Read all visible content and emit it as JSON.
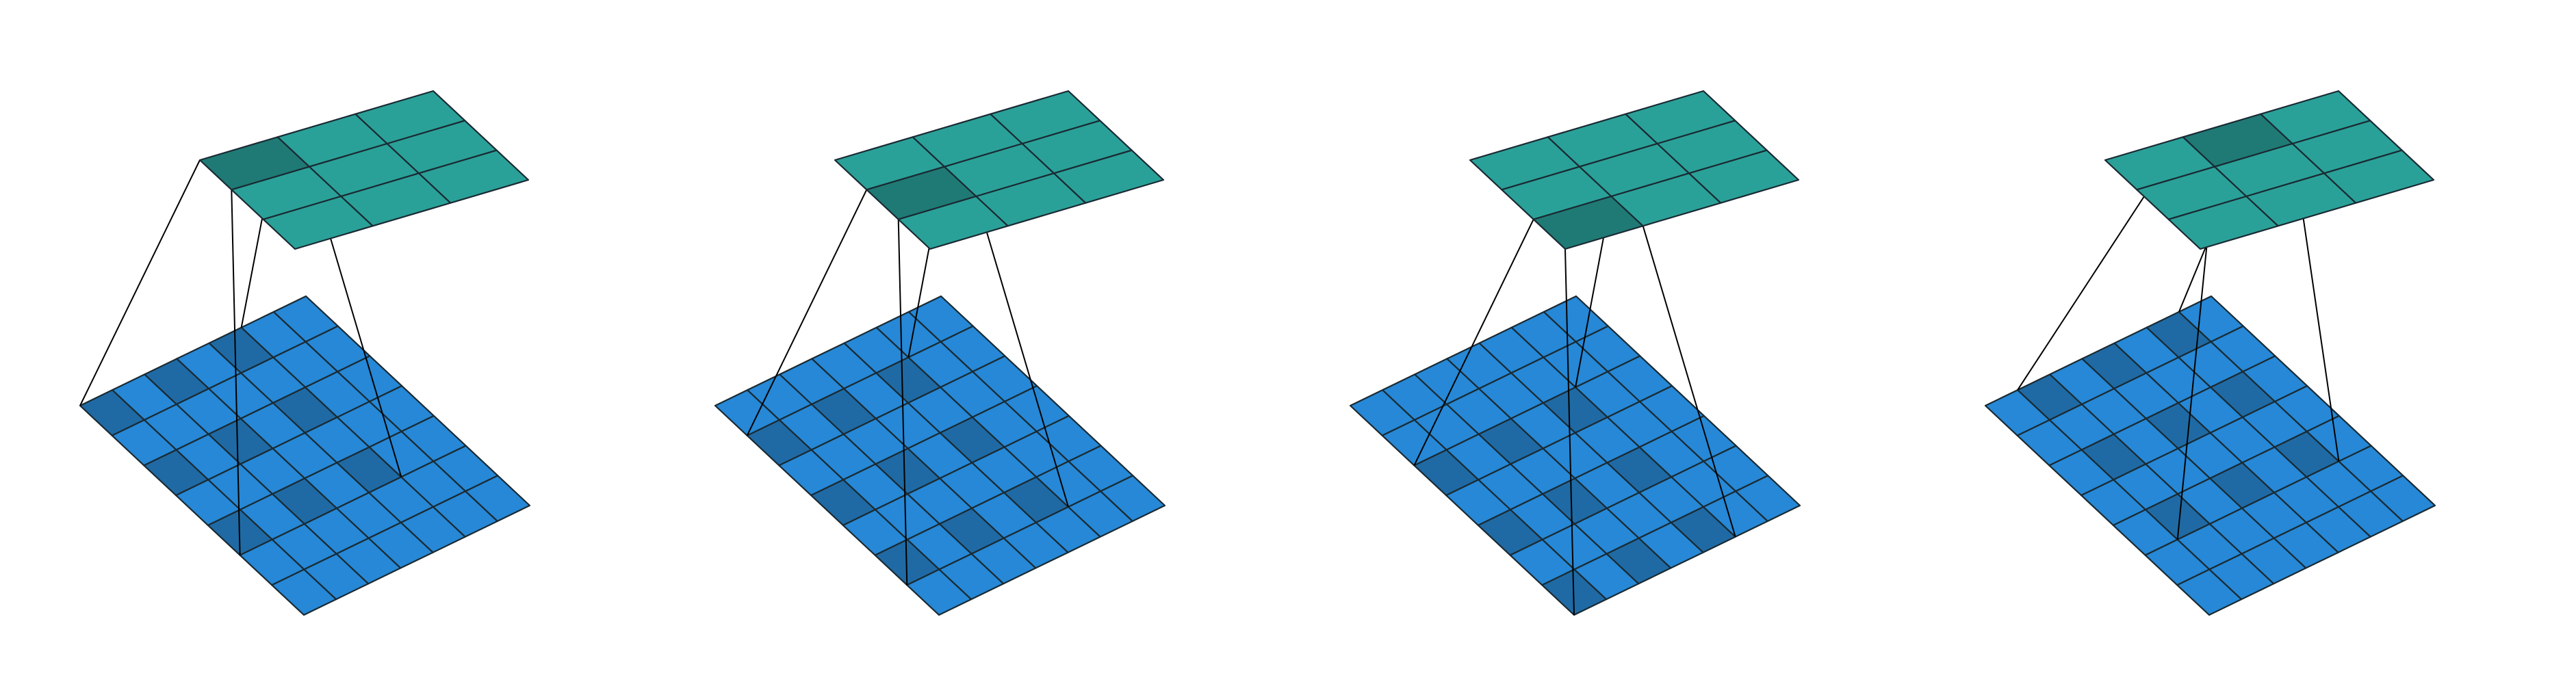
{
  "figure": {
    "description_visible_text": "",
    "panel_count": 4
  },
  "colors": {
    "background": "#ffffff",
    "input_cell": "#2688d6",
    "input_cell_active": "#1f6aa4",
    "output_cell": "#2aa198",
    "output_cell_active": "#1f7a75",
    "grid_line": "#1a2a33",
    "projection_line": "#000000"
  },
  "panels": [
    {
      "id": "panel-1",
      "input_grid": {
        "rows": 7,
        "cols": 7,
        "active_cells": [
          [
            0,
            0
          ],
          [
            0,
            2
          ],
          [
            0,
            4
          ],
          [
            2,
            0
          ],
          [
            2,
            2
          ],
          [
            2,
            4
          ],
          [
            4,
            0
          ],
          [
            4,
            2
          ],
          [
            4,
            4
          ]
        ]
      },
      "output_grid": {
        "rows": 3,
        "cols": 3,
        "active_cells": [
          [
            0,
            0
          ]
        ]
      }
    },
    {
      "id": "panel-2",
      "input_grid": {
        "rows": 7,
        "cols": 7,
        "active_cells": [
          [
            0,
            1
          ],
          [
            0,
            3
          ],
          [
            0,
            5
          ],
          [
            2,
            1
          ],
          [
            2,
            3
          ],
          [
            2,
            5
          ],
          [
            4,
            1
          ],
          [
            4,
            3
          ],
          [
            4,
            5
          ]
        ]
      },
      "output_grid": {
        "rows": 3,
        "cols": 3,
        "active_cells": [
          [
            0,
            1
          ]
        ]
      }
    },
    {
      "id": "panel-3",
      "input_grid": {
        "rows": 7,
        "cols": 7,
        "active_cells": [
          [
            0,
            2
          ],
          [
            0,
            4
          ],
          [
            0,
            6
          ],
          [
            2,
            2
          ],
          [
            2,
            4
          ],
          [
            2,
            6
          ],
          [
            4,
            2
          ],
          [
            4,
            4
          ],
          [
            4,
            6
          ]
        ]
      },
      "output_grid": {
        "rows": 3,
        "cols": 3,
        "active_cells": [
          [
            0,
            2
          ]
        ]
      }
    },
    {
      "id": "panel-4",
      "input_grid": {
        "rows": 7,
        "cols": 7,
        "active_cells": [
          [
            1,
            0
          ],
          [
            1,
            2
          ],
          [
            1,
            4
          ],
          [
            3,
            0
          ],
          [
            3,
            2
          ],
          [
            3,
            4
          ],
          [
            5,
            0
          ],
          [
            5,
            2
          ],
          [
            5,
            4
          ]
        ]
      },
      "output_grid": {
        "rows": 3,
        "cols": 3,
        "active_cells": [
          [
            1,
            0
          ]
        ]
      }
    }
  ]
}
